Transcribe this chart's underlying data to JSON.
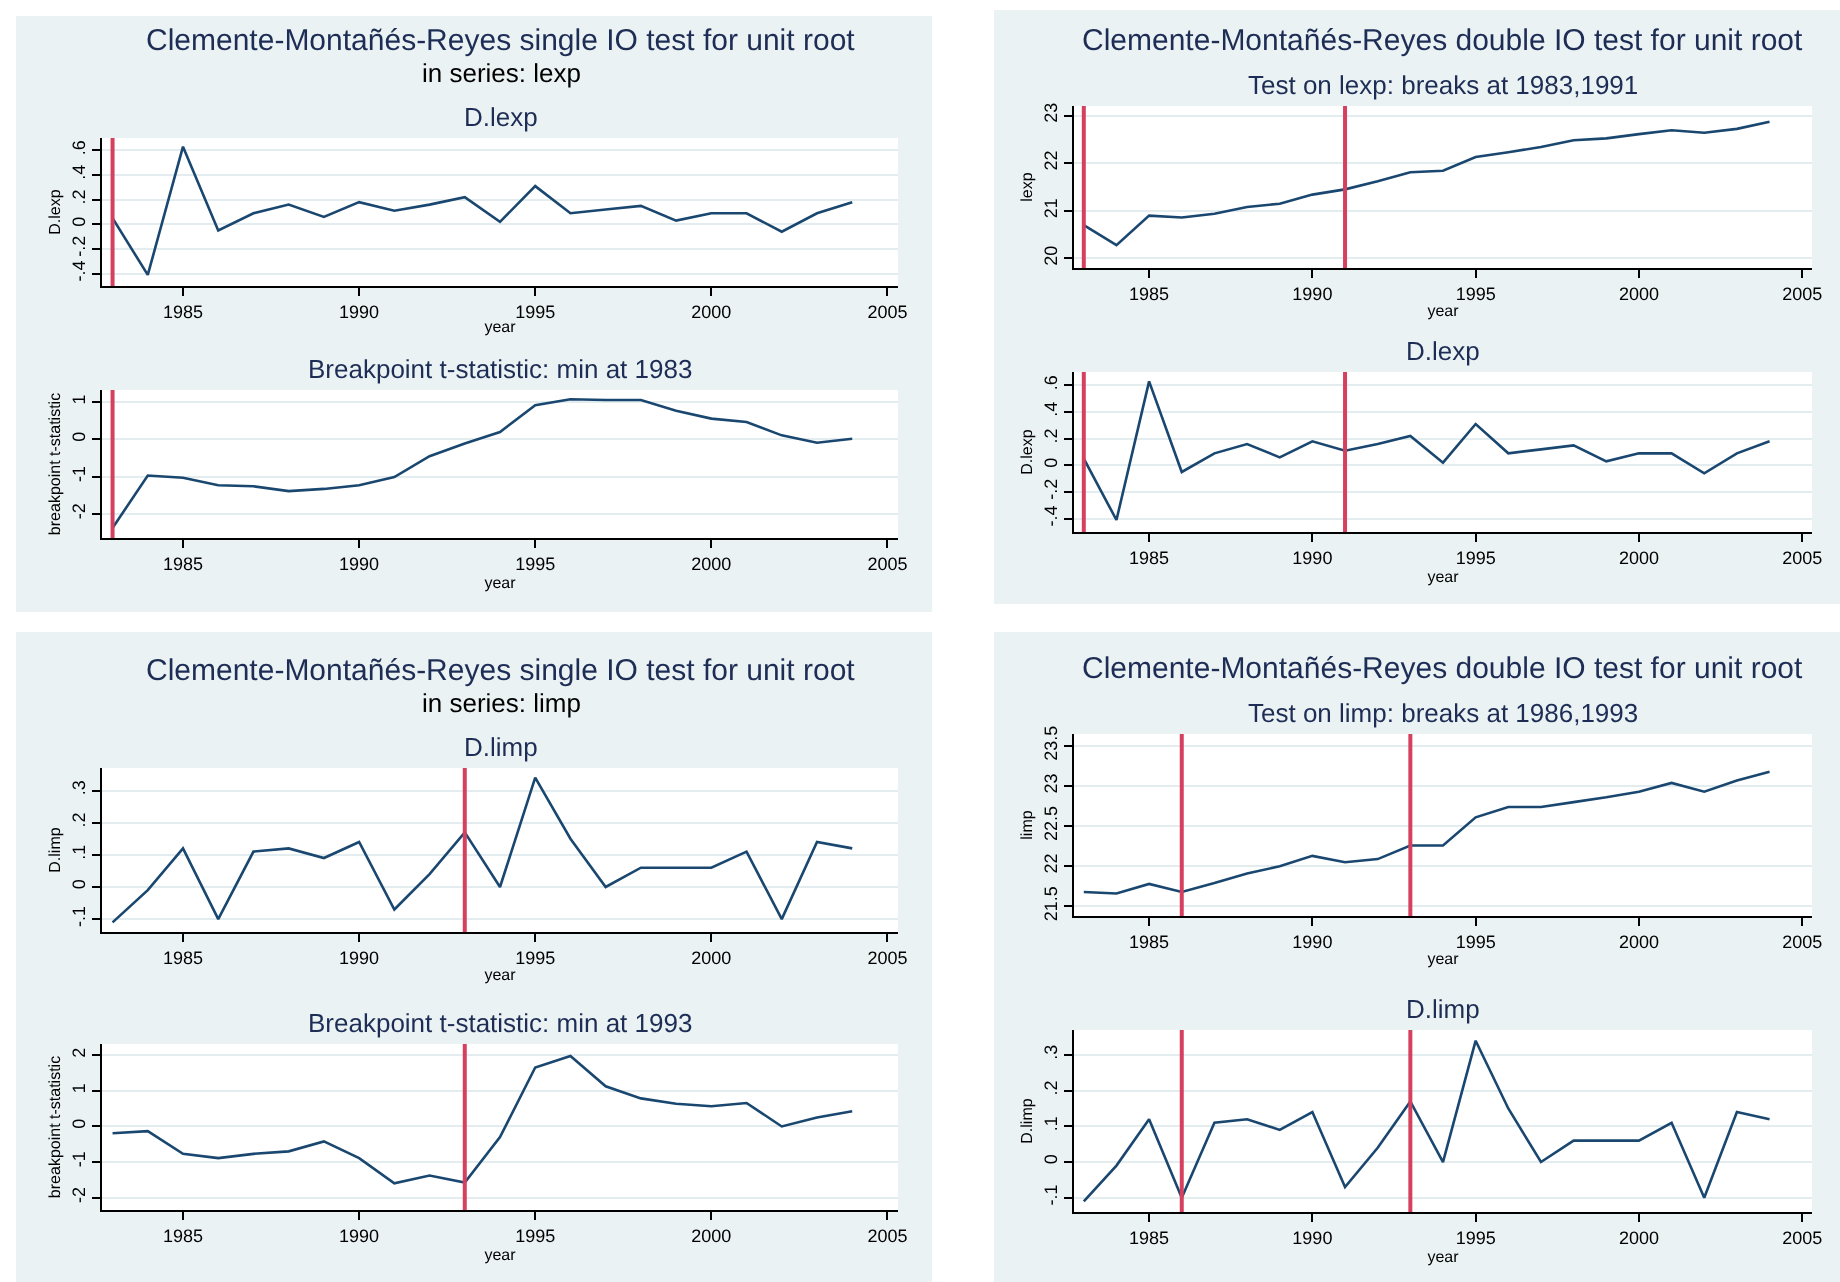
{
  "chart_data": [
    {
      "type": "line",
      "title": "D.lexp",
      "annotations": [
        "Clemente-Montañés-Reyes single IO test for unit root",
        "in series: lexp"
      ],
      "xlabel": "year",
      "ylabel": "D.lexp",
      "x": [
        1983,
        1984,
        1985,
        1986,
        1987,
        1988,
        1989,
        1990,
        1991,
        1992,
        1993,
        1994,
        1995,
        1996,
        1997,
        1998,
        1999,
        2000,
        2001,
        2002,
        2003,
        2004
      ],
      "series": [
        {
          "color": "#1a476f",
          "values": [
            0.05,
            -0.41,
            0.63,
            -0.05,
            0.09,
            0.16,
            0.06,
            0.18,
            0.11,
            0.16,
            0.22,
            0.02,
            0.31,
            0.09,
            0.12,
            0.15,
            0.03,
            0.09,
            0.09,
            -0.06,
            0.09,
            0.18
          ]
        }
      ],
      "xlim": [
        1982.7,
        2005.3
      ],
      "xticks": [
        1985,
        1990,
        1995,
        2000,
        2005
      ],
      "ylim": [
        -0.5,
        0.7
      ],
      "yticks": [
        {
          "value": -0.4,
          "label": "-.4"
        },
        {
          "value": -0.2,
          "label": "-.2"
        },
        0,
        {
          "value": 0.2,
          "label": ".2"
        },
        {
          "value": 0.4,
          "label": ".4"
        },
        {
          "value": 0.6,
          "label": ".6"
        }
      ],
      "grid": "y",
      "ref_lines": [
        {
          "axis": "x",
          "value": 1983,
          "color": "#d6405f"
        }
      ]
    },
    {
      "type": "line",
      "title": "Breakpoint t-statistic: min at 1983",
      "xlabel": "year",
      "ylabel": "breakpoint t-statistic",
      "x": [
        1983,
        1984,
        1985,
        1986,
        1987,
        1988,
        1989,
        1990,
        1991,
        1992,
        1993,
        1994,
        1995,
        1996,
        1997,
        1998,
        1999,
        2000,
        2001,
        2002,
        2003,
        2004
      ],
      "series": [
        {
          "color": "#1a476f",
          "values": [
            -2.38,
            -0.97,
            -1.03,
            -1.23,
            -1.26,
            -1.39,
            -1.33,
            -1.23,
            -1.01,
            -0.45,
            -0.11,
            0.2,
            0.92,
            1.08,
            1.06,
            1.06,
            0.77,
            0.56,
            0.47,
            0.11,
            -0.09,
            0.02
          ]
        }
      ],
      "xlim": [
        1982.7,
        2005.3
      ],
      "xticks": [
        1985,
        1990,
        1995,
        2000,
        2005
      ],
      "ylim": [
        -2.65,
        1.33
      ],
      "yticks": [
        -2,
        -1,
        0,
        1
      ],
      "grid": "y",
      "ref_lines": [
        {
          "axis": "x",
          "value": 1983,
          "color": "#d6405f"
        }
      ]
    },
    {
      "type": "line",
      "title": "Test on lexp: breaks at 1983,1991",
      "annotations": [
        "Clemente-Montañés-Reyes double IO test for unit root"
      ],
      "xlabel": "year",
      "ylabel": "lexp",
      "x": [
        1983,
        1984,
        1985,
        1986,
        1987,
        1988,
        1989,
        1990,
        1991,
        1992,
        1993,
        1994,
        1995,
        1996,
        1997,
        1998,
        1999,
        2000,
        2001,
        2002,
        2003,
        2004
      ],
      "series": [
        {
          "color": "#1a476f",
          "values": [
            20.7,
            20.28,
            20.9,
            20.86,
            20.94,
            21.08,
            21.15,
            21.34,
            21.45,
            21.62,
            21.81,
            21.84,
            22.13,
            22.23,
            22.34,
            22.48,
            22.52,
            22.61,
            22.69,
            22.64,
            22.72,
            22.87
          ]
        }
      ],
      "xlim": [
        1982.7,
        2005.3
      ],
      "xticks": [
        1985,
        1990,
        1995,
        2000,
        2005
      ],
      "ylim": [
        19.8,
        23.2
      ],
      "yticks": [
        20,
        21,
        22,
        23
      ],
      "grid": "y",
      "ref_lines": [
        {
          "axis": "x",
          "value": 1983,
          "color": "#d6405f"
        },
        {
          "axis": "x",
          "value": 1991,
          "color": "#d6405f"
        }
      ]
    },
    {
      "type": "line",
      "title": "D.lexp",
      "xlabel": "year",
      "ylabel": "D.lexp",
      "x": [
        1983,
        1984,
        1985,
        1986,
        1987,
        1988,
        1989,
        1990,
        1991,
        1992,
        1993,
        1994,
        1995,
        1996,
        1997,
        1998,
        1999,
        2000,
        2001,
        2002,
        2003,
        2004
      ],
      "series": [
        {
          "color": "#1a476f",
          "values": [
            0.05,
            -0.41,
            0.63,
            -0.05,
            0.09,
            0.16,
            0.06,
            0.18,
            0.11,
            0.16,
            0.22,
            0.02,
            0.31,
            0.09,
            0.12,
            0.15,
            0.03,
            0.09,
            0.09,
            -0.06,
            0.09,
            0.18
          ]
        }
      ],
      "xlim": [
        1982.7,
        2005.3
      ],
      "xticks": [
        1985,
        1990,
        1995,
        2000,
        2005
      ],
      "ylim": [
        -0.5,
        0.7
      ],
      "yticks": [
        {
          "value": -0.4,
          "label": "-.4"
        },
        {
          "value": -0.2,
          "label": "-.2"
        },
        0,
        {
          "value": 0.2,
          "label": ".2"
        },
        {
          "value": 0.4,
          "label": ".4"
        },
        {
          "value": 0.6,
          "label": ".6"
        }
      ],
      "grid": "y",
      "ref_lines": [
        {
          "axis": "x",
          "value": 1983,
          "color": "#d6405f"
        },
        {
          "axis": "x",
          "value": 1991,
          "color": "#d6405f"
        }
      ]
    },
    {
      "type": "line",
      "title": "D.limp",
      "annotations": [
        "Clemente-Montañés-Reyes single IO test for unit root",
        "in series: limp"
      ],
      "xlabel": "year",
      "ylabel": "D.limp",
      "x": [
        1983,
        1984,
        1985,
        1986,
        1987,
        1988,
        1989,
        1990,
        1991,
        1992,
        1993,
        1994,
        1995,
        1996,
        1997,
        1998,
        1999,
        2000,
        2001,
        2002,
        2003,
        2004
      ],
      "series": [
        {
          "color": "#1a476f",
          "values": [
            -0.11,
            -0.01,
            0.12,
            -0.1,
            0.11,
            0.12,
            0.09,
            0.14,
            -0.07,
            0.04,
            0.17,
            0.0,
            0.34,
            0.15,
            0.0,
            0.06,
            0.06,
            0.06,
            0.11,
            -0.1,
            0.14,
            0.12
          ]
        }
      ],
      "xlim": [
        1982.7,
        2005.3
      ],
      "xticks": [
        1985,
        1990,
        1995,
        2000,
        2005
      ],
      "ylim": [
        -0.14,
        0.37
      ],
      "yticks": [
        {
          "value": -0.1,
          "label": "-.1"
        },
        0,
        {
          "value": 0.1,
          "label": ".1"
        },
        {
          "value": 0.2,
          "label": ".2"
        },
        {
          "value": 0.3,
          "label": ".3"
        }
      ],
      "grid": "y",
      "ref_lines": [
        {
          "axis": "x",
          "value": 1993,
          "color": "#d6405f"
        }
      ]
    },
    {
      "type": "line",
      "title": "Breakpoint t-statistic: min at 1993",
      "xlabel": "year",
      "ylabel": "breakpoint t-statistic",
      "x": [
        1983,
        1984,
        1985,
        1986,
        1987,
        1988,
        1989,
        1990,
        1991,
        1992,
        1993,
        1994,
        1995,
        1996,
        1997,
        1998,
        1999,
        2000,
        2001,
        2002,
        2003,
        2004
      ],
      "series": [
        {
          "color": "#1a476f",
          "values": [
            -0.19,
            -0.13,
            -0.77,
            -0.89,
            -0.77,
            -0.7,
            -0.42,
            -0.89,
            -1.6,
            -1.38,
            -1.58,
            -0.3,
            1.66,
            1.98,
            1.13,
            0.79,
            0.64,
            0.57,
            0.66,
            0.0,
            0.25,
            0.43
          ]
        }
      ],
      "xlim": [
        1982.7,
        2005.3
      ],
      "xticks": [
        1985,
        1990,
        1995,
        2000,
        2005
      ],
      "ylim": [
        -2.35,
        2.32
      ],
      "yticks": [
        -2,
        -1,
        0,
        1,
        2
      ],
      "grid": "y",
      "ref_lines": [
        {
          "axis": "x",
          "value": 1993,
          "color": "#d6405f"
        }
      ]
    },
    {
      "type": "line",
      "title": "Test on limp: breaks at 1986,1993",
      "annotations": [
        "Clemente-Montañés-Reyes double IO test for unit root"
      ],
      "xlabel": "year",
      "ylabel": "limp",
      "x": [
        1983,
        1984,
        1985,
        1986,
        1987,
        1988,
        1989,
        1990,
        1991,
        1992,
        1993,
        1994,
        1995,
        1996,
        1997,
        1998,
        1999,
        2000,
        2001,
        2002,
        2003,
        2004
      ],
      "series": [
        {
          "color": "#1a476f",
          "values": [
            21.68,
            21.66,
            21.78,
            21.68,
            21.79,
            21.91,
            22.0,
            22.13,
            22.05,
            22.09,
            22.26,
            22.26,
            22.61,
            22.74,
            22.74,
            22.8,
            22.86,
            22.93,
            23.04,
            22.93,
            23.07,
            23.18
          ]
        }
      ],
      "xlim": [
        1982.7,
        2005.3
      ],
      "xticks": [
        1985,
        1990,
        1995,
        2000,
        2005
      ],
      "ylim": [
        21.38,
        23.65
      ],
      "yticks": [
        21.5,
        22,
        22.5,
        23,
        23.5
      ],
      "grid": "y",
      "ref_lines": [
        {
          "axis": "x",
          "value": 1986,
          "color": "#d6405f"
        },
        {
          "axis": "x",
          "value": 1993,
          "color": "#d6405f"
        }
      ]
    },
    {
      "type": "line",
      "title": "D.limp",
      "xlabel": "year",
      "ylabel": "D.limp",
      "x": [
        1983,
        1984,
        1985,
        1986,
        1987,
        1988,
        1989,
        1990,
        1991,
        1992,
        1993,
        1994,
        1995,
        1996,
        1997,
        1998,
        1999,
        2000,
        2001,
        2002,
        2003,
        2004
      ],
      "series": [
        {
          "color": "#1a476f",
          "values": [
            -0.11,
            -0.01,
            0.12,
            -0.1,
            0.11,
            0.12,
            0.09,
            0.14,
            -0.07,
            0.04,
            0.17,
            0.0,
            0.34,
            0.15,
            0.0,
            0.06,
            0.06,
            0.06,
            0.11,
            -0.1,
            0.14,
            0.12
          ]
        }
      ],
      "xlim": [
        1982.7,
        2005.3
      ],
      "xticks": [
        1985,
        1990,
        1995,
        2000,
        2005
      ],
      "ylim": [
        -0.14,
        0.37
      ],
      "yticks": [
        {
          "value": -0.1,
          "label": "-.1"
        },
        0,
        {
          "value": 0.1,
          "label": ".1"
        },
        {
          "value": 0.2,
          "label": ".2"
        },
        {
          "value": 0.3,
          "label": ".3"
        }
      ],
      "grid": "y",
      "ref_lines": [
        {
          "axis": "x",
          "value": 1986,
          "color": "#d6405f"
        },
        {
          "axis": "x",
          "value": 1993,
          "color": "#d6405f"
        }
      ]
    }
  ]
}
